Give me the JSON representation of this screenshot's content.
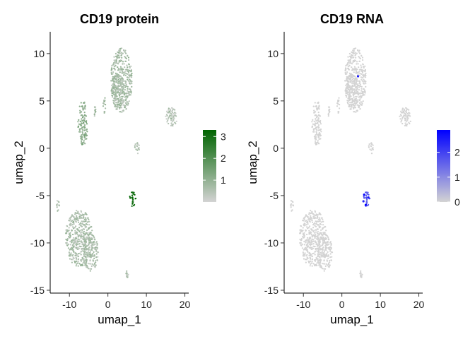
{
  "chart_data": [
    {
      "type": "scatter",
      "title": "CD19 protein",
      "xlabel": "umap_1",
      "ylabel": "umap_2",
      "xlim": [
        -15,
        21
      ],
      "ylim": [
        -15.3,
        12.3
      ],
      "x_ticks": [
        -10,
        0,
        10,
        20
      ],
      "x_tick_labels": [
        "-10",
        "0",
        "10",
        "20"
      ],
      "y_ticks": [
        10,
        5,
        0,
        -5,
        -10,
        -15
      ],
      "y_tick_labels": [
        "10",
        "5",
        "0",
        "-5",
        "-10",
        "-15"
      ],
      "grid": false,
      "color_scale": {
        "low": "#d3d3d3",
        "high": "#006400",
        "min": 0,
        "max": 3.3,
        "ticks": [
          1,
          2,
          3
        ],
        "tick_labels": [
          "1",
          "2",
          "3"
        ]
      },
      "legend_position": "right",
      "clusters": [
        {
          "shape": "ellipse",
          "cx": 3.5,
          "cy": 7.2,
          "rx": 2.8,
          "ry": 3.4,
          "value": 0.7
        },
        {
          "shape": "ellipse",
          "cx": 2.5,
          "cy": 6.0,
          "rx": 1.5,
          "ry": 2.0,
          "value": 0.7
        },
        {
          "shape": "ellipse",
          "cx": -6.5,
          "cy": 2.6,
          "rx": 1.3,
          "ry": 2.4,
          "value": 1.1
        },
        {
          "shape": "ellipse",
          "cx": 16.5,
          "cy": 3.3,
          "rx": 1.6,
          "ry": 1.0,
          "value": 0.5
        },
        {
          "shape": "ellipse",
          "cx": 7.5,
          "cy": 0.0,
          "rx": 0.7,
          "ry": 0.6,
          "value": 0.5
        },
        {
          "shape": "ellipse",
          "cx": 6.4,
          "cy": -5.4,
          "rx": 0.9,
          "ry": 0.8,
          "value": 3.0
        },
        {
          "shape": "ellipse",
          "cx": -7.5,
          "cy": -9.5,
          "rx": 3.6,
          "ry": 3.0,
          "value": 0.6
        },
        {
          "shape": "ellipse",
          "cx": -4.5,
          "cy": -11.0,
          "rx": 2.0,
          "ry": 2.0,
          "value": 0.6
        },
        {
          "shape": "ellipse",
          "cx": -3.5,
          "cy": 4.0,
          "rx": 0.5,
          "ry": 0.6,
          "value": 0.7
        },
        {
          "shape": "ellipse",
          "cx": -1.0,
          "cy": 4.6,
          "rx": 0.4,
          "ry": 0.9,
          "value": 0.7
        },
        {
          "shape": "ellipse",
          "cx": -13.0,
          "cy": -6.0,
          "rx": 0.4,
          "ry": 0.7,
          "value": 0.5
        },
        {
          "shape": "ellipse",
          "cx": 5.0,
          "cy": -13.3,
          "rx": 0.4,
          "ry": 0.4,
          "value": 0.5
        }
      ]
    },
    {
      "type": "scatter",
      "title": "CD19 RNA",
      "xlabel": "umap_1",
      "ylabel": "umap_2",
      "xlim": [
        -15,
        21
      ],
      "ylim": [
        -15.3,
        12.3
      ],
      "x_ticks": [
        -10,
        0,
        10,
        20
      ],
      "x_tick_labels": [
        "-10",
        "0",
        "10",
        "20"
      ],
      "y_ticks": [
        10,
        5,
        0,
        -5,
        -10,
        -15
      ],
      "y_tick_labels": [
        "10",
        "5",
        "0",
        "-5",
        "-10",
        "-15"
      ],
      "grid": false,
      "color_scale": {
        "low": "#d3d3d3",
        "high": "#0000ff",
        "min": 0,
        "max": 2.9,
        "ticks": [
          0,
          1,
          2
        ],
        "tick_labels": [
          "0",
          "1",
          "2"
        ]
      },
      "legend_position": "right",
      "clusters": [
        {
          "shape": "ellipse",
          "cx": 3.5,
          "cy": 7.2,
          "rx": 2.8,
          "ry": 3.4,
          "value": 0.0
        },
        {
          "shape": "ellipse",
          "cx": 2.5,
          "cy": 6.0,
          "rx": 1.5,
          "ry": 2.0,
          "value": 0.0
        },
        {
          "shape": "ellipse",
          "cx": -6.5,
          "cy": 2.6,
          "rx": 1.3,
          "ry": 2.4,
          "value": 0.0
        },
        {
          "shape": "ellipse",
          "cx": 16.5,
          "cy": 3.3,
          "rx": 1.6,
          "ry": 1.0,
          "value": 0.0
        },
        {
          "shape": "ellipse",
          "cx": 7.5,
          "cy": 0.0,
          "rx": 0.7,
          "ry": 0.6,
          "value": 0.0
        },
        {
          "shape": "ellipse",
          "cx": 6.4,
          "cy": -5.4,
          "rx": 0.9,
          "ry": 0.8,
          "value": 1.6
        },
        {
          "shape": "ellipse",
          "cx": -7.5,
          "cy": -9.5,
          "rx": 3.6,
          "ry": 3.0,
          "value": 0.0
        },
        {
          "shape": "ellipse",
          "cx": -4.5,
          "cy": -11.0,
          "rx": 2.0,
          "ry": 2.0,
          "value": 0.0
        },
        {
          "shape": "ellipse",
          "cx": -3.5,
          "cy": 4.0,
          "rx": 0.5,
          "ry": 0.6,
          "value": 0.0
        },
        {
          "shape": "ellipse",
          "cx": -1.0,
          "cy": 4.6,
          "rx": 0.4,
          "ry": 0.9,
          "value": 0.0
        },
        {
          "shape": "ellipse",
          "cx": -13.0,
          "cy": -6.0,
          "rx": 0.4,
          "ry": 0.7,
          "value": 0.0
        },
        {
          "shape": "ellipse",
          "cx": 5.0,
          "cy": -13.3,
          "rx": 0.4,
          "ry": 0.4,
          "value": 0.0
        }
      ],
      "highlight_points": [
        {
          "x": 4.2,
          "y": 7.6,
          "value": 2.5
        },
        {
          "x": 5.8,
          "y": -4.9,
          "value": 2.8
        },
        {
          "x": 6.9,
          "y": -5.2,
          "value": 2.6
        },
        {
          "x": 6.2,
          "y": -6.0,
          "value": 2.9
        },
        {
          "x": 5.6,
          "y": -5.6,
          "value": 2.4
        }
      ]
    }
  ]
}
